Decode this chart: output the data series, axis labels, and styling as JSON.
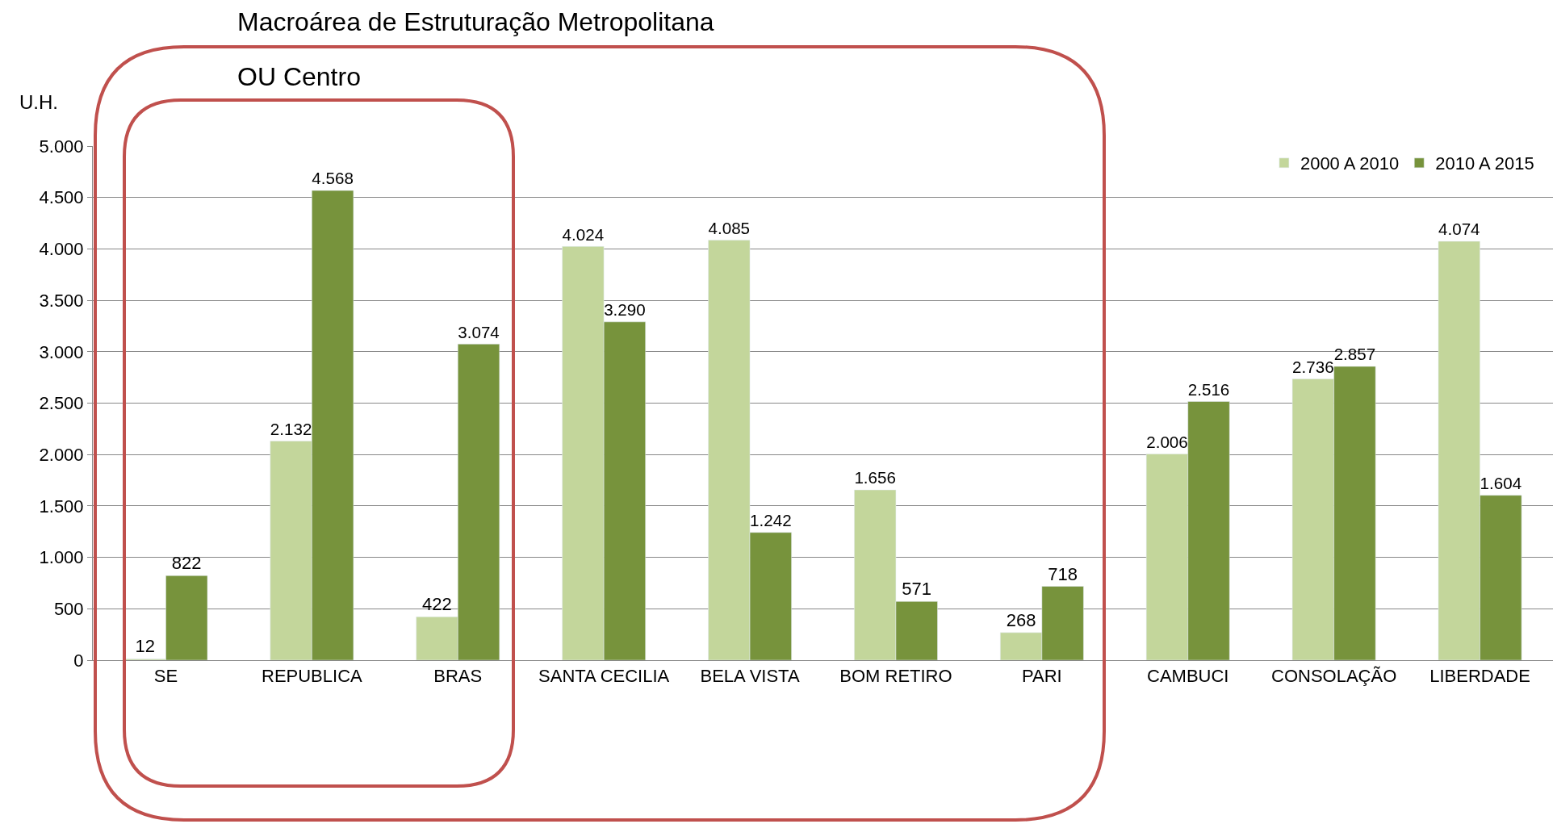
{
  "chart_data": {
    "type": "bar",
    "title": "Macroárea de Estruturação Metropolitana",
    "ylabel": "U.H.",
    "annotations": [
      "OU Centro"
    ],
    "categories": [
      "SE",
      "REPUBLICA",
      "BRAS",
      "SANTA CECILIA",
      "BELA VISTA",
      "BOM RETIRO",
      "PARI",
      "CAMBUCI",
      "CONSOLAÇÃO",
      "LIBERDADE"
    ],
    "series": [
      {
        "name": "2000 A 2010",
        "color": "#c3d69b",
        "values": [
          12,
          2132,
          422,
          4024,
          4085,
          1656,
          268,
          2006,
          2736,
          4074
        ],
        "value_labels": [
          "12",
          "2.132",
          "422",
          "4.024",
          "4.085",
          "1.656",
          "268",
          "2.006",
          "2.736",
          "4.074"
        ]
      },
      {
        "name": "2010 A 2015",
        "color": "#77933c",
        "values": [
          822,
          4568,
          3074,
          3290,
          1242,
          571,
          718,
          2516,
          2857,
          1604
        ],
        "value_labels": [
          "822",
          "4.568",
          "3.074",
          "3.290",
          "1.242",
          "571",
          "718",
          "2.516",
          "2.857",
          "1.604"
        ]
      }
    ],
    "ylim": [
      0,
      5000
    ],
    "yticks": [
      {
        "value": 0,
        "label": "0"
      },
      {
        "value": 500,
        "label": "500"
      },
      {
        "value": 1000,
        "label": "1.000"
      },
      {
        "value": 1500,
        "label": "1.500"
      },
      {
        "value": 2000,
        "label": "2.000"
      },
      {
        "value": 2500,
        "label": "2.500"
      },
      {
        "value": 3000,
        "label": "3.000"
      },
      {
        "value": 3500,
        "label": "3.500"
      },
      {
        "value": 4000,
        "label": "4.000"
      },
      {
        "value": 4500,
        "label": "4.500"
      },
      {
        "value": 5000,
        "label": "5.000"
      }
    ],
    "grid": "y",
    "legend": "top right"
  }
}
